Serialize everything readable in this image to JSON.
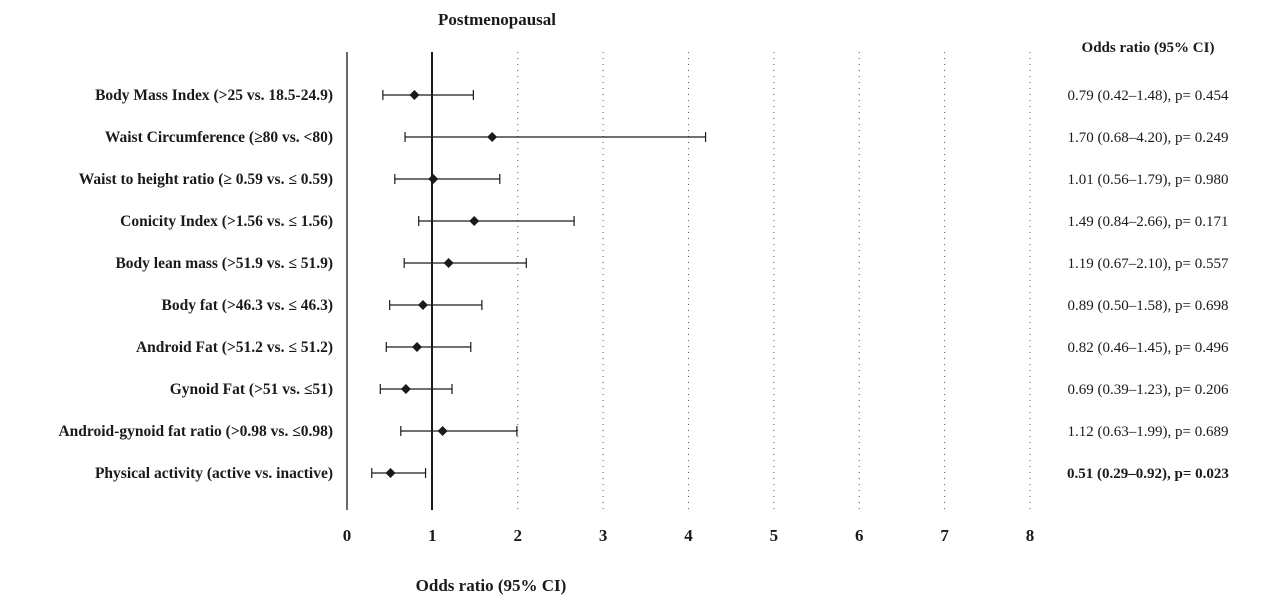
{
  "chart_data": {
    "type": "forest",
    "title": "Postmenopausal",
    "xlabel": "Odds ratio (95% CI)",
    "right_column_header": "Odds ratio (95% CI)",
    "xlim": [
      0,
      8
    ],
    "x_ticks": [
      "0",
      "1",
      "2",
      "3",
      "4",
      "5",
      "6",
      "7",
      "8"
    ],
    "reference_line": 1,
    "grid": "dotted vertical at 2–8",
    "rows": [
      {
        "label": "Body Mass Index (>25 vs. 18.5-24.9)",
        "or": 0.79,
        "lo": 0.42,
        "hi": 1.48,
        "text": "0.79 (0.42–1.48), p= 0.454",
        "bold": false
      },
      {
        "label": "Waist Circumference (≥80 vs. <80)",
        "or": 1.7,
        "lo": 0.68,
        "hi": 4.2,
        "text": "1.70 (0.68–4.20), p= 0.249",
        "bold": false
      },
      {
        "label": "Waist to height ratio (≥ 0.59 vs. ≤ 0.59)",
        "or": 1.01,
        "lo": 0.56,
        "hi": 1.79,
        "text": "1.01 (0.56–1.79), p= 0.980",
        "bold": false
      },
      {
        "label": "Conicity Index (>1.56 vs. ≤ 1.56)",
        "or": 1.49,
        "lo": 0.84,
        "hi": 2.66,
        "text": "1.49 (0.84–2.66), p= 0.171",
        "bold": false
      },
      {
        "label": "Body lean mass (>51.9 vs. ≤ 51.9)",
        "or": 1.19,
        "lo": 0.67,
        "hi": 2.1,
        "text": "1.19 (0.67–2.10), p= 0.557",
        "bold": false
      },
      {
        "label": "Body fat (>46.3 vs. ≤ 46.3)",
        "or": 0.89,
        "lo": 0.5,
        "hi": 1.58,
        "text": "0.89 (0.50–1.58), p= 0.698",
        "bold": false
      },
      {
        "label": "Android Fat (>51.2 vs. ≤ 51.2)",
        "or": 0.82,
        "lo": 0.46,
        "hi": 1.45,
        "text": "0.82 (0.46–1.45), p= 0.496",
        "bold": false
      },
      {
        "label": "Gynoid Fat (>51 vs. ≤51)",
        "or": 0.69,
        "lo": 0.39,
        "hi": 1.23,
        "text": "0.69 (0.39–1.23), p= 0.206",
        "bold": false
      },
      {
        "label": "Android-gynoid fat ratio (>0.98 vs. ≤0.98)",
        "or": 1.12,
        "lo": 0.63,
        "hi": 1.99,
        "text": "1.12 (0.63–1.99), p= 0.689",
        "bold": false
      },
      {
        "label": "Physical activity (active vs. inactive)",
        "or": 0.51,
        "lo": 0.29,
        "hi": 0.92,
        "text": "0.51 (0.29–0.92), p= 0.023",
        "bold": true
      }
    ]
  }
}
